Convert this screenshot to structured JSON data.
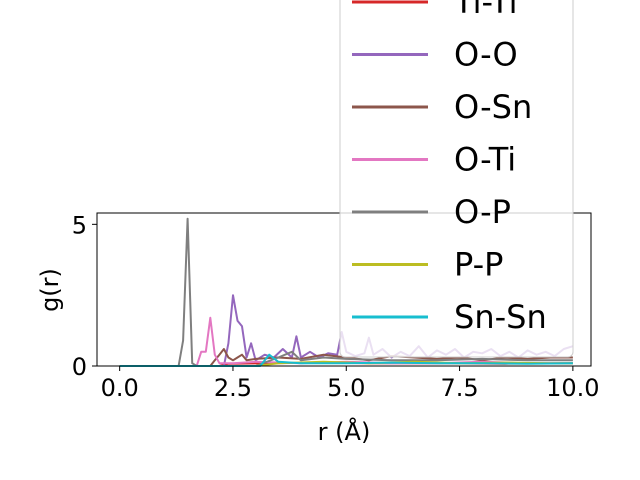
{
  "chart_data": {
    "type": "line",
    "xlabel": "r (Å)",
    "ylabel": "g(r)",
    "xlim": [
      -0.5,
      10.4
    ],
    "ylim": [
      0,
      5.4
    ],
    "xticks": [
      0.0,
      2.5,
      5.0,
      7.5,
      10.0
    ],
    "xtick_labels": [
      "0.0",
      "2.5",
      "5.0",
      "7.5",
      "10.0"
    ],
    "yticks": [
      0,
      5
    ],
    "ytick_labels": [
      "0",
      "5"
    ],
    "legend_position": "upper-right, extending above the plot",
    "series": [
      {
        "name": "Ti-Ti",
        "color": "#d62728",
        "x": [
          0,
          2.2,
          2.4,
          3.3,
          4.5,
          5.5,
          6.5,
          7.5,
          8.5,
          10
        ],
        "y": [
          0,
          0,
          0.08,
          0.1,
          0.12,
          0.1,
          0.1,
          0.1,
          0.08,
          0.1
        ]
      },
      {
        "name": "O-O",
        "color": "#9467bd",
        "x": [
          0,
          2.3,
          2.4,
          2.5,
          2.6,
          2.7,
          2.8,
          2.9,
          3.0,
          3.2,
          3.4,
          3.6,
          3.8,
          3.9,
          4.0,
          4.2,
          4.4,
          4.6,
          4.8,
          4.9,
          5.0,
          5.2,
          5.4,
          5.5,
          5.6,
          5.8,
          6.0,
          6.2,
          6.4,
          6.6,
          6.8,
          7.0,
          7.2,
          7.4,
          7.6,
          7.8,
          8.0,
          8.2,
          8.4,
          8.6,
          8.8,
          9.0,
          9.2,
          9.4,
          9.6,
          9.8,
          10.0
        ],
        "y": [
          0,
          0,
          0.8,
          2.5,
          1.6,
          1.4,
          0.3,
          0.8,
          0.2,
          0.4,
          0.3,
          0.6,
          0.3,
          1.05,
          0.3,
          0.5,
          0.3,
          0.45,
          0.4,
          1.2,
          0.5,
          0.35,
          0.45,
          1.0,
          0.4,
          0.6,
          0.3,
          0.5,
          0.35,
          0.7,
          0.3,
          0.55,
          0.4,
          0.6,
          0.3,
          0.5,
          0.45,
          0.6,
          0.35,
          0.5,
          0.3,
          0.55,
          0.4,
          0.5,
          0.35,
          0.6,
          0.7
        ]
      },
      {
        "name": "O-Sn",
        "color": "#8c564b",
        "x": [
          0,
          2.0,
          2.1,
          2.2,
          2.3,
          2.4,
          2.5,
          2.6,
          2.7,
          2.8,
          3.0,
          3.5,
          4.0,
          4.5,
          5.0,
          5.5,
          6.0,
          6.5,
          7.0,
          7.5,
          8.0,
          8.5,
          9.0,
          9.5,
          10.0
        ],
        "y": [
          0,
          0,
          0.2,
          0.4,
          0.6,
          0.3,
          0.2,
          0.3,
          0.4,
          0.2,
          0.25,
          0.3,
          0.25,
          0.4,
          0.3,
          0.2,
          0.35,
          0.3,
          0.25,
          0.3,
          0.2,
          0.3,
          0.25,
          0.3,
          0.3
        ]
      },
      {
        "name": "O-Ti",
        "color": "#e377c2",
        "x": [
          0,
          1.7,
          1.8,
          1.9,
          2.0,
          2.1,
          2.2,
          2.5,
          3.0,
          4.0,
          5.0,
          6.0,
          7.0,
          8.0,
          9.0,
          10.0
        ],
        "y": [
          0,
          0,
          0.5,
          0.5,
          1.7,
          0.4,
          0.1,
          0.1,
          0.15,
          0.1,
          0.15,
          0.1,
          0.1,
          0.15,
          0.1,
          0.1
        ]
      },
      {
        "name": "O-P",
        "color": "#7f7f7f",
        "x": [
          0,
          1.3,
          1.4,
          1.5,
          1.6,
          1.7,
          2.0,
          3.0,
          3.5,
          3.8,
          4.0,
          4.5,
          5.0,
          6.0,
          7.0,
          8.0,
          9.0,
          10.0
        ],
        "y": [
          0,
          0,
          0.9,
          5.2,
          0.1,
          0,
          0,
          0,
          0.3,
          0.5,
          0.2,
          0.3,
          0.25,
          0.2,
          0.2,
          0.25,
          0.2,
          0.2
        ]
      },
      {
        "name": "P-P",
        "color": "#bcbd22",
        "x": [
          0,
          3.0,
          3.5,
          4.5,
          5.5,
          6.5,
          7.5,
          8.5,
          9.5,
          10.0
        ],
        "y": [
          0,
          0,
          0.1,
          0.15,
          0.1,
          0.15,
          0.1,
          0.12,
          0.1,
          0.1
        ]
      },
      {
        "name": "Sn-Sn",
        "color": "#17becf",
        "x": [
          0,
          3.1,
          3.3,
          3.5,
          4.0,
          5.0,
          6.0,
          7.0,
          8.0,
          9.0,
          10.0
        ],
        "y": [
          0,
          0,
          0.4,
          0.15,
          0.1,
          0.1,
          0.12,
          0.1,
          0.1,
          0.08,
          0.1
        ]
      }
    ]
  }
}
